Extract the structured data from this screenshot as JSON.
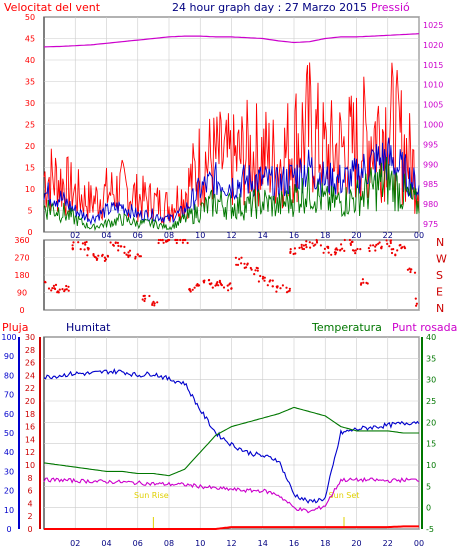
{
  "chart_data": [
    {
      "type": "line",
      "title": "24 hour graph day : 27 Marzo 2015",
      "left_label": "Velocitat del vent",
      "right_label": "Pressió",
      "left_ticks": [
        "0",
        "5",
        "10",
        "15",
        "20",
        "25",
        "30",
        "35",
        "40",
        "45",
        "50"
      ],
      "right_ticks": [
        "975",
        "980",
        "985",
        "990",
        "995",
        "1000",
        "1005",
        "1010",
        "1015",
        "1020",
        "1025"
      ],
      "x_ticks": [
        "02",
        "04",
        "06",
        "08",
        "10",
        "12",
        "14",
        "16",
        "18",
        "20",
        "22",
        "00"
      ],
      "ylim": [
        0,
        50
      ],
      "y2lim": [
        973,
        1027
      ],
      "x": [
        0,
        1,
        2,
        3,
        4,
        5,
        6,
        7,
        8,
        9,
        10,
        11,
        12,
        13,
        14,
        15,
        16,
        17,
        18,
        19,
        20,
        21,
        22,
        23,
        24
      ],
      "series": [
        {
          "name": "Pressió",
          "color": "#cc00cc",
          "axis": "right",
          "values": [
            1019.5,
            1019.6,
            1019.8,
            1020.0,
            1020.4,
            1020.8,
            1021.2,
            1021.6,
            1022.0,
            1022.2,
            1022.2,
            1022.0,
            1022.0,
            1021.8,
            1021.6,
            1021.0,
            1020.6,
            1020.8,
            1021.6,
            1022.0,
            1022.0,
            1022.2,
            1022.4,
            1022.6,
            1022.8
          ]
        },
        {
          "name": "Velocitat del vent",
          "color": "#ff0000",
          "axis": "left",
          "values": [
            13,
            12,
            9,
            7,
            9,
            10,
            8,
            7,
            6,
            9,
            16,
            17,
            16,
            18,
            18,
            16,
            21,
            24,
            18,
            19,
            20,
            23,
            25,
            20,
            12
          ]
        },
        {
          "name": "",
          "color": "#0000cc",
          "axis": "left",
          "values": [
            9,
            8,
            5,
            3,
            5,
            6,
            4,
            4,
            3,
            5,
            10,
            12,
            11,
            12,
            12,
            11,
            13,
            15,
            12,
            12,
            13,
            16,
            17,
            14,
            10
          ]
        },
        {
          "name": "",
          "color": "#007700",
          "axis": "left",
          "values": [
            6,
            5,
            3,
            1,
            2,
            3,
            2,
            2,
            1,
            3,
            5,
            7,
            6,
            6,
            7,
            6,
            8,
            10,
            7,
            7,
            8,
            10,
            12,
            9,
            6
          ]
        }
      ]
    },
    {
      "type": "scatter",
      "direction_labels": [
        "N",
        "W",
        "S",
        "E",
        "N"
      ],
      "left_ticks": [
        "360",
        "270",
        "180",
        "90",
        "0"
      ],
      "ylim": [
        0,
        360
      ],
      "x": [
        0,
        0.5,
        1,
        1.5,
        2,
        2.5,
        3,
        3.5,
        4,
        4.5,
        5,
        5.5,
        6,
        6.5,
        7,
        7.5,
        8,
        8.5,
        9,
        9.5,
        10,
        10.5,
        11,
        11.5,
        12,
        12.5,
        13,
        13.5,
        14,
        14.5,
        15,
        15.5,
        16,
        16.5,
        17,
        17.5,
        18,
        18.5,
        19,
        19.5,
        20,
        20.5,
        21,
        21.5,
        22,
        22.5,
        23,
        23.5,
        24
      ],
      "values": [
        130,
        120,
        110,
        115,
        330,
        330,
        300,
        270,
        270,
        350,
        310,
        290,
        280,
        60,
        40,
        360,
        360,
        360,
        360,
        100,
        140,
        150,
        130,
        130,
        120,
        250,
        220,
        200,
        160,
        140,
        110,
        110,
        300,
        320,
        340,
        340,
        310,
        300,
        320,
        350,
        300,
        150,
        320,
        330,
        340,
        300,
        330,
        200,
        40
      ],
      "color": "#ee0000"
    },
    {
      "type": "line",
      "labels": {
        "rain": "Pluja",
        "humidity": "Humitat",
        "temperature": "Temperatura",
        "dewpoint": "Punt rosada"
      },
      "sunrise_label": "Sun Rise",
      "sunset_label": "Sun Set",
      "sunrise_hour": 7.0,
      "sunset_hour": 19.2,
      "humidity_ticks": [
        "0",
        "10",
        "20",
        "30",
        "40",
        "50",
        "60",
        "70",
        "80",
        "90",
        "100"
      ],
      "rain_ticks": [
        "0",
        "2",
        "4",
        "6",
        "8",
        "10",
        "12",
        "14",
        "16",
        "18",
        "20",
        "22",
        "24",
        "26",
        "28",
        "30"
      ],
      "temp_ticks": [
        "-5",
        "0",
        "5",
        "10",
        "15",
        "20",
        "25",
        "30",
        "35",
        "40"
      ],
      "x_ticks": [
        "02",
        "04",
        "06",
        "08",
        "10",
        "12",
        "14",
        "16",
        "18",
        "20",
        "22",
        "00"
      ],
      "x": [
        0,
        1,
        2,
        3,
        4,
        5,
        6,
        7,
        8,
        9,
        10,
        11,
        12,
        13,
        14,
        15,
        16,
        17,
        18,
        19,
        20,
        21,
        22,
        23,
        24
      ],
      "series": [
        {
          "name": "Humitat",
          "color": "#0000cc",
          "axis": "humidity",
          "range": [
            0,
            100
          ],
          "values": [
            79,
            80,
            81,
            81,
            82,
            82,
            80,
            81,
            78,
            76,
            62,
            50,
            44,
            40,
            38,
            36,
            18,
            14,
            16,
            50,
            52,
            53,
            54,
            55,
            56
          ]
        },
        {
          "name": "Temperatura",
          "color": "#007700",
          "axis": "temp",
          "range": [
            -5,
            40
          ],
          "values": [
            10.5,
            10,
            9.5,
            9,
            8.5,
            8.5,
            8,
            8,
            7.5,
            9,
            13,
            17,
            19,
            20,
            21,
            22,
            23.5,
            22.5,
            21.5,
            19,
            18,
            18,
            18,
            17.5,
            17.5
          ]
        },
        {
          "name": "Punt rosada",
          "color": "#cc00cc",
          "axis": "temp",
          "range": [
            -5,
            40
          ],
          "values": [
            6.5,
            6.5,
            6.3,
            6.2,
            6.1,
            6.0,
            5.8,
            5.6,
            5.5,
            5.4,
            5.0,
            4.5,
            4.3,
            4.0,
            4.0,
            3.0,
            0.0,
            -1.0,
            0.5,
            6.5,
            6.5,
            6.5,
            6.3,
            6.5,
            6.5
          ]
        },
        {
          "name": "Pluja",
          "color": "#ff0000",
          "axis": "rain",
          "range": [
            0,
            30
          ],
          "values": [
            0,
            0,
            0,
            0,
            0,
            0,
            0,
            0,
            0,
            0,
            0,
            0,
            0.3,
            0.3,
            0.3,
            0.3,
            0.3,
            0.3,
            0.3,
            0.3,
            0.3,
            0.3,
            0.3,
            0.4,
            0.4
          ]
        }
      ]
    }
  ]
}
